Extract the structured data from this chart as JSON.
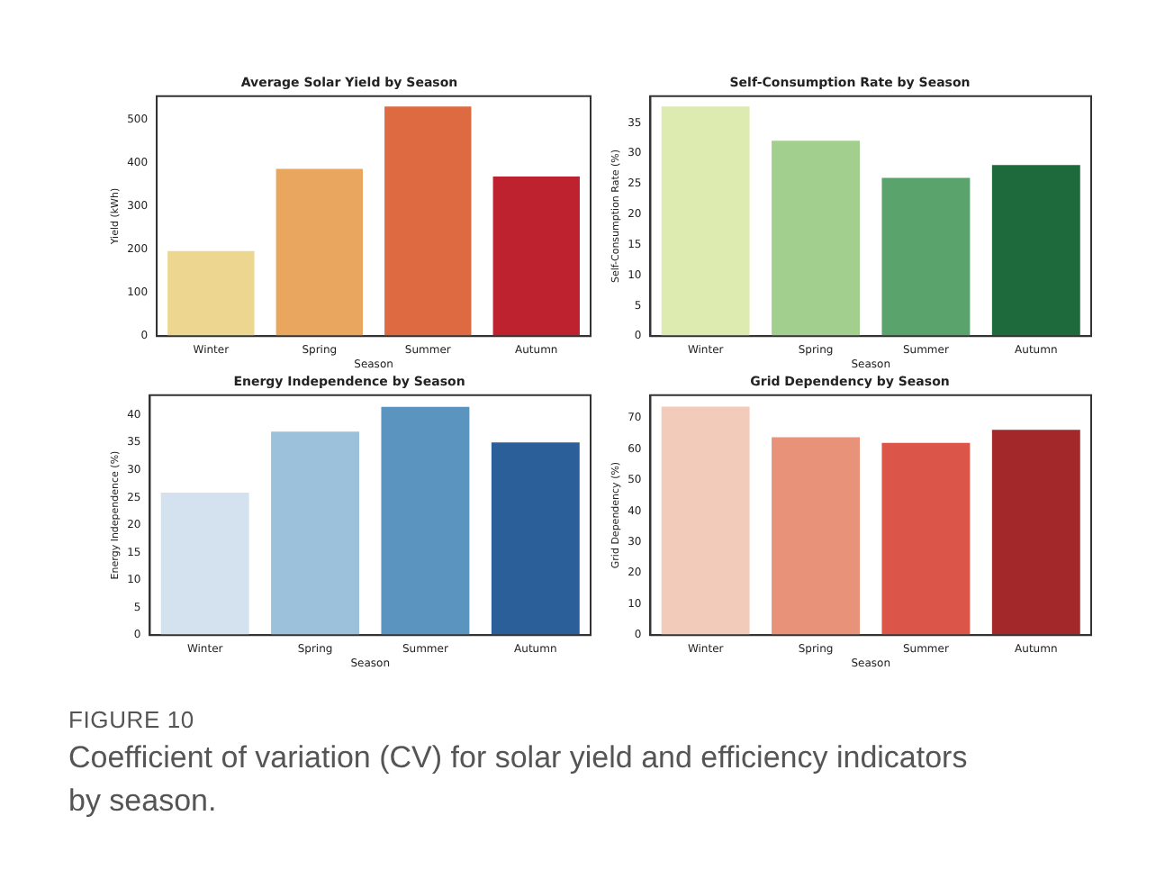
{
  "chart_data": [
    {
      "type": "bar",
      "title": "Average Solar Yield by Season",
      "xlabel": "Season",
      "ylabel": "Yield (kWh)",
      "categories": [
        "Winter",
        "Spring",
        "Summer",
        "Autumn"
      ],
      "values": [
        197,
        387,
        531,
        369
      ],
      "colors": [
        "#edd68f",
        "#e8a65f",
        "#de6a42",
        "#bd222e"
      ],
      "ylim": [
        0,
        555
      ],
      "yticks": [
        0,
        100,
        200,
        300,
        400,
        500
      ],
      "grid": false,
      "legend": false
    },
    {
      "type": "bar",
      "title": "Self-Consumption Rate by Season",
      "xlabel": "Season",
      "ylabel": "Self-Consumption Rate (%)",
      "categories": [
        "Winter",
        "Spring",
        "Summer",
        "Autumn"
      ],
      "values": [
        37.7,
        32.1,
        26.0,
        28.1
      ],
      "colors": [
        "#deebb0",
        "#a3cf8e",
        "#5aa36c",
        "#1e6a3c"
      ],
      "ylim": [
        0,
        39.4
      ],
      "yticks": [
        0,
        5,
        10,
        15,
        20,
        25,
        30,
        35
      ],
      "grid": false,
      "legend": false
    },
    {
      "type": "bar",
      "title": "Energy Independence by Season",
      "xlabel": "Season",
      "ylabel": "Energy Independence (%)",
      "categories": [
        "Winter",
        "Spring",
        "Summer",
        "Autumn"
      ],
      "values": [
        25.9,
        37.0,
        41.5,
        35.0
      ],
      "colors": [
        "#d3e2ee",
        "#9cc1da",
        "#5b95bf",
        "#2a5f99"
      ],
      "ylim": [
        0,
        43.6
      ],
      "yticks": [
        0,
        5,
        10,
        15,
        20,
        25,
        30,
        35,
        40
      ],
      "grid": false,
      "legend": false
    },
    {
      "type": "bar",
      "title": "Grid Dependency by Season",
      "xlabel": "Season",
      "ylabel": "Grid Dependency (%)",
      "categories": [
        "Winter",
        "Spring",
        "Summer",
        "Autumn"
      ],
      "values": [
        73.7,
        63.8,
        62.0,
        66.2
      ],
      "colors": [
        "#f2cbbb",
        "#e8927a",
        "#db5649",
        "#a3282a"
      ],
      "ylim": [
        0,
        77.4
      ],
      "yticks": [
        0,
        10,
        20,
        30,
        40,
        50,
        60,
        70
      ],
      "grid": false,
      "legend": false
    },
    {
      "type": "other",
      "annotations": [
        "FIGURE 10",
        "Coefficient of variation (CV) for solar yield and efficiency indicators by season."
      ]
    }
  ]
}
